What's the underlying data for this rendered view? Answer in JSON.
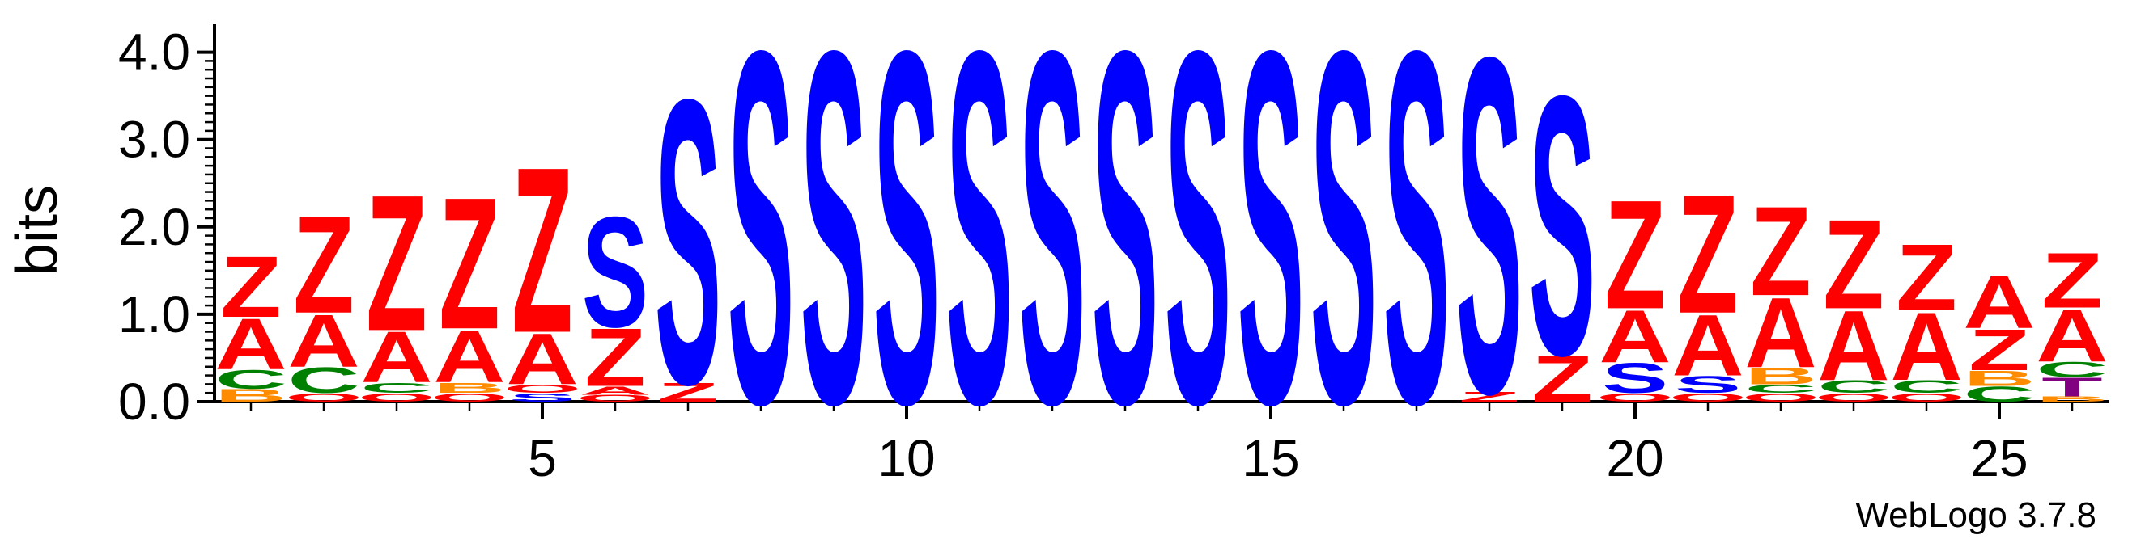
{
  "chart_data": {
    "type": "sequence-logo",
    "ylabel": "bits",
    "ylim": [
      0,
      4.32
    ],
    "yticks": [
      "0.0",
      "1.0",
      "2.0",
      "3.0",
      "4.0"
    ],
    "xticks": [
      "5",
      "10",
      "15",
      "20",
      "25"
    ],
    "x_tick_positions": [
      5,
      10,
      15,
      20,
      25
    ],
    "n_positions": 26,
    "colors": {
      "Z": "#ff0000",
      "A": "#ff0000",
      "S": "#0000ff",
      "C": "#008000",
      "B": "#ff8c00",
      "T": "#800080",
      "O": "#ff0000"
    },
    "positions": [
      {
        "pos": 1,
        "stack": [
          [
            "B",
            0.15
          ],
          [
            "C",
            0.22
          ],
          [
            "A",
            0.6
          ],
          [
            "Z",
            0.72
          ]
        ]
      },
      {
        "pos": 2,
        "stack": [
          [
            "O",
            0.1
          ],
          [
            "C",
            0.3
          ],
          [
            "A",
            0.62
          ],
          [
            "Z",
            1.15
          ]
        ]
      },
      {
        "pos": 3,
        "stack": [
          [
            "O",
            0.1
          ],
          [
            "C",
            0.12
          ],
          [
            "A",
            0.6
          ],
          [
            "Z",
            1.6
          ]
        ]
      },
      {
        "pos": 4,
        "stack": [
          [
            "O",
            0.1
          ],
          [
            "B",
            0.12
          ],
          [
            "A",
            0.62
          ],
          [
            "Z",
            1.55
          ]
        ]
      },
      {
        "pos": 5,
        "stack": [
          [
            "S",
            0.1
          ],
          [
            "O",
            0.1
          ],
          [
            "A",
            0.6
          ],
          [
            "Z",
            1.95
          ]
        ]
      },
      {
        "pos": 6,
        "stack": [
          [
            "O",
            0.08
          ],
          [
            "A",
            0.1
          ],
          [
            "Z",
            0.68
          ],
          [
            "S",
            1.3
          ]
        ]
      },
      {
        "pos": 7,
        "stack": [
          [
            "Z",
            0.22
          ],
          [
            "S",
            3.35
          ]
        ]
      },
      {
        "pos": 8,
        "stack": [
          [
            "S",
            4.15
          ]
        ]
      },
      {
        "pos": 9,
        "stack": [
          [
            "S",
            4.15
          ]
        ]
      },
      {
        "pos": 10,
        "stack": [
          [
            "S",
            4.15
          ]
        ]
      },
      {
        "pos": 11,
        "stack": [
          [
            "S",
            4.15
          ]
        ]
      },
      {
        "pos": 12,
        "stack": [
          [
            "S",
            4.15
          ]
        ]
      },
      {
        "pos": 13,
        "stack": [
          [
            "S",
            4.15
          ]
        ]
      },
      {
        "pos": 14,
        "stack": [
          [
            "S",
            4.15
          ]
        ]
      },
      {
        "pos": 15,
        "stack": [
          [
            "S",
            4.15
          ]
        ]
      },
      {
        "pos": 16,
        "stack": [
          [
            "S",
            4.15
          ]
        ]
      },
      {
        "pos": 17,
        "stack": [
          [
            "S",
            4.15
          ]
        ]
      },
      {
        "pos": 18,
        "stack": [
          [
            "Z",
            0.12
          ],
          [
            "S",
            3.95
          ]
        ]
      },
      {
        "pos": 19,
        "stack": [
          [
            "Z",
            0.55
          ],
          [
            "S",
            3.05
          ]
        ]
      },
      {
        "pos": 20,
        "stack": [
          [
            "O",
            0.1
          ],
          [
            "S",
            0.35
          ],
          [
            "A",
            0.62
          ],
          [
            "Z",
            1.28
          ]
        ]
      },
      {
        "pos": 21,
        "stack": [
          [
            "O",
            0.1
          ],
          [
            "S",
            0.2
          ],
          [
            "A",
            0.72
          ],
          [
            "Z",
            1.4
          ]
        ]
      },
      {
        "pos": 22,
        "stack": [
          [
            "O",
            0.1
          ],
          [
            "C",
            0.1
          ],
          [
            "B",
            0.2
          ],
          [
            "A",
            0.82
          ],
          [
            "Z",
            1.05
          ]
        ]
      },
      {
        "pos": 23,
        "stack": [
          [
            "O",
            0.1
          ],
          [
            "C",
            0.15
          ],
          [
            "A",
            0.82
          ],
          [
            "Z",
            1.05
          ]
        ]
      },
      {
        "pos": 24,
        "stack": [
          [
            "O",
            0.1
          ],
          [
            "C",
            0.15
          ],
          [
            "A",
            0.8
          ],
          [
            "Z",
            0.78
          ]
        ]
      },
      {
        "pos": 25,
        "stack": [
          [
            "C",
            0.18
          ],
          [
            "B",
            0.18
          ],
          [
            "Z",
            0.48
          ],
          [
            "A",
            0.62
          ]
        ]
      },
      {
        "pos": 26,
        "stack": [
          [
            "B",
            0.06
          ],
          [
            "T",
            0.22
          ],
          [
            "C",
            0.18
          ],
          [
            "A",
            0.62
          ],
          [
            "Z",
            0.65
          ]
        ]
      }
    ]
  },
  "credit": "WebLogo 3.7.8"
}
